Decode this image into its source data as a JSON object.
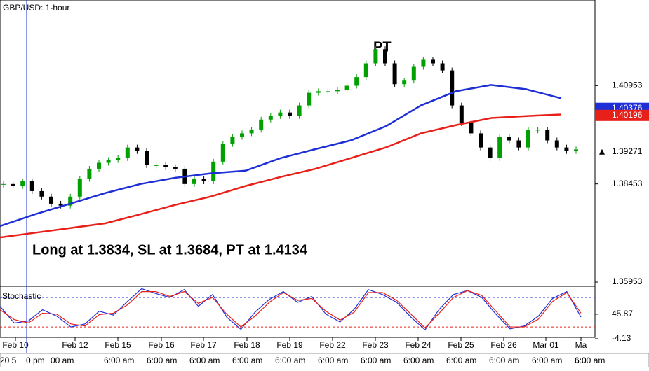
{
  "chart_data": {
    "type": "candlestick",
    "title": "GBP/USD: 1-hour",
    "annotations": [
      "PT",
      "Long at 1.3834, SL at 1.3684, PT at 1.4134"
    ],
    "values": [
      1.3845,
      1.384,
      1.3852,
      1.3827,
      1.3813,
      1.3795,
      1.379,
      1.3813,
      1.3858,
      1.3884,
      1.3899,
      1.3906,
      1.3911,
      1.3938,
      1.3929,
      1.3893,
      1.3893,
      1.3888,
      1.3884,
      1.3845,
      1.3858,
      1.3852,
      1.3902,
      1.3947,
      1.3965,
      1.3974,
      1.3983,
      1.4009,
      1.4018,
      1.4027,
      1.4018,
      1.4045,
      1.4077,
      1.4081,
      1.4081,
      1.4084,
      1.4095,
      1.4117,
      1.4152,
      1.4188,
      1.4152,
      1.4099,
      1.4108,
      1.4143,
      1.4161,
      1.4152,
      1.4134,
      1.4045,
      1.4,
      1.3974,
      1.3938,
      1.3911,
      1.3965,
      1.3956,
      1.3938,
      1.3983,
      1.3983,
      1.3956,
      1.3938,
      1.3929,
      1.3933
    ],
    "up_color": "#00a000",
    "down_color": "#000000",
    "moving_averages": [
      {
        "color": "#1f2fd6",
        "values": [
          1.3738,
          1.3768,
          1.3795,
          1.3822,
          1.3845,
          1.3861,
          1.3872,
          1.3879,
          1.3911,
          1.3934,
          1.3956,
          1.3992,
          1.4045,
          1.4081,
          1.4097,
          1.4086,
          1.4063
        ]
      },
      {
        "color": "#e8201a",
        "values": [
          1.3709,
          1.3721,
          1.3733,
          1.3745,
          1.3768,
          1.3792,
          1.3813,
          1.384,
          1.3863,
          1.3884,
          1.3911,
          1.3938,
          1.3974,
          1.3995,
          1.4013,
          1.4018,
          1.4022
        ]
      }
    ],
    "ylim": [
      1.35864,
      1.43132
    ],
    "yticks": [
      1.40953,
      1.38453,
      1.35953
    ],
    "price_markers": [
      {
        "value": 1.40376,
        "color": "#1f2fd6"
      },
      {
        "value": 1.40196,
        "color": "#e8201a"
      },
      {
        "value": 1.39271,
        "color": "#000000"
      }
    ],
    "x_labels": [
      "Feb 10",
      "Feb 12",
      "Feb 15",
      "Feb 16",
      "Feb 17",
      "Feb 18",
      "Feb 19",
      "Feb 22",
      "Feb 23",
      "Feb 24",
      "Feb 25",
      "Feb 26",
      "Mar 01",
      "Ma"
    ],
    "time_labels": [
      "20 5",
      "0 pm",
      "00 am",
      "6:00 am",
      "6:00 am",
      "6:00 am",
      "6:00 am",
      "6:00 am",
      "6:00 am",
      "6:00 am",
      "6:00 am",
      "6:00 am",
      "6:00 am",
      "6:00 am",
      "6:00 am",
      "6:0"
    ],
    "stochastic": {
      "title": "Stochastic",
      "y2lim": [
        -1.3,
        101.4
      ],
      "y2ticks": [
        45.87,
        -4.13
      ],
      "levels": [
        80,
        20
      ],
      "series": [
        {
          "color": "#1f2fd6",
          "values": [
            62,
            28,
            32,
            55,
            42,
            20,
            26,
            52,
            44,
            72,
            98,
            88,
            80,
            96,
            62,
            86,
            40,
            15,
            50,
            76,
            92,
            70,
            82,
            46,
            30,
            56,
            96,
            86,
            70,
            40,
            14,
            56,
            86,
            94,
            80,
            46,
            16,
            22,
            42,
            78,
            92,
            40
          ]
        },
        {
          "color": "#e8201a",
          "values": [
            55,
            35,
            28,
            48,
            46,
            26,
            22,
            45,
            48,
            65,
            92,
            92,
            82,
            92,
            68,
            80,
            46,
            20,
            42,
            70,
            90,
            74,
            78,
            52,
            34,
            50,
            90,
            90,
            74,
            46,
            18,
            48,
            80,
            94,
            84,
            52,
            20,
            20,
            36,
            72,
            90,
            48
          ]
        }
      ]
    }
  }
}
